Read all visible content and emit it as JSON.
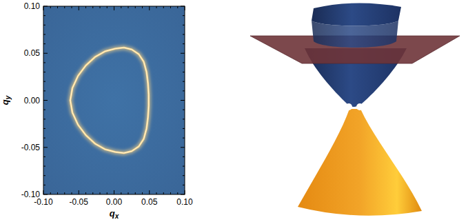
{
  "chart_data": {
    "type": "line",
    "xlabel": "qx",
    "ylabel": "qy",
    "x": [
      -0.062,
      -0.059,
      -0.051,
      -0.04,
      -0.027,
      -0.013,
      0.002,
      0.014,
      0.025,
      0.035,
      0.042,
      0.046,
      0.048,
      0.049,
      0.049,
      0.048,
      0.046,
      0.042,
      0.035,
      0.025,
      0.014,
      0.002,
      -0.013,
      -0.027,
      -0.04,
      -0.051,
      -0.059,
      -0.062
    ],
    "series": [
      {
        "color": "#ffd98a",
        "values": [
          0.0,
          0.013,
          0.026,
          0.037,
          0.046,
          0.052,
          0.055,
          0.056,
          0.054,
          0.049,
          0.041,
          0.03,
          0.018,
          0.006,
          -0.006,
          -0.018,
          -0.03,
          -0.041,
          -0.049,
          -0.054,
          -0.056,
          -0.055,
          -0.052,
          -0.046,
          -0.037,
          -0.026,
          -0.013,
          0.0
        ]
      }
    ],
    "xlim": [
      -0.1,
      0.1
    ],
    "ylim": [
      -0.1,
      0.1
    ],
    "xticks": [
      {
        "value": -0.1,
        "label": "-0.10"
      },
      {
        "value": -0.05,
        "label": "-0.05"
      },
      {
        "value": 0,
        "label": "0.00"
      },
      {
        "value": 0.05,
        "label": "0.05"
      },
      {
        "value": 0.1,
        "label": "0.10"
      }
    ],
    "yticks": [
      {
        "value": -0.1,
        "label": "-0.10"
      },
      {
        "value": -0.05,
        "label": "-0.05"
      },
      {
        "value": 0,
        "label": "0.00"
      },
      {
        "value": 0.05,
        "label": "0.05"
      },
      {
        "value": 0.1,
        "label": "0.10"
      }
    ],
    "grid": false
  }
}
